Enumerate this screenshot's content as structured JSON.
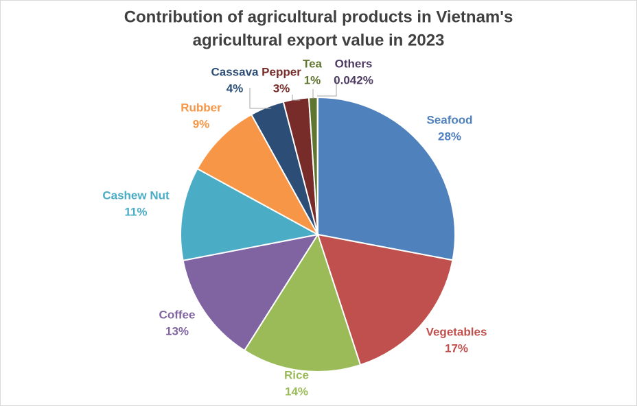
{
  "chart_data": {
    "type": "pie",
    "title": [
      "Contribution of agricultural products in Vietnam's",
      "agricultural export value in 2023"
    ],
    "categories": [
      "Seafood",
      "Vegetables",
      "Rice",
      "Coffee",
      "Cashew Nut",
      "Rubber",
      "Cassava",
      "Pepper",
      "Tea",
      "Others"
    ],
    "values": [
      28,
      17,
      14,
      13,
      11,
      9,
      4,
      3,
      1,
      0.042
    ],
    "value_labels": [
      "28%",
      "17%",
      "14%",
      "13%",
      "11%",
      "9%",
      "4%",
      "3%",
      "1%",
      "0.042%"
    ],
    "colors": [
      "#4f81bd",
      "#c0504d",
      "#9bbb59",
      "#8064a2",
      "#4bacc6",
      "#f79646",
      "#2c4d75",
      "#772c2a",
      "#5f7530",
      "#4d3b62"
    ]
  }
}
